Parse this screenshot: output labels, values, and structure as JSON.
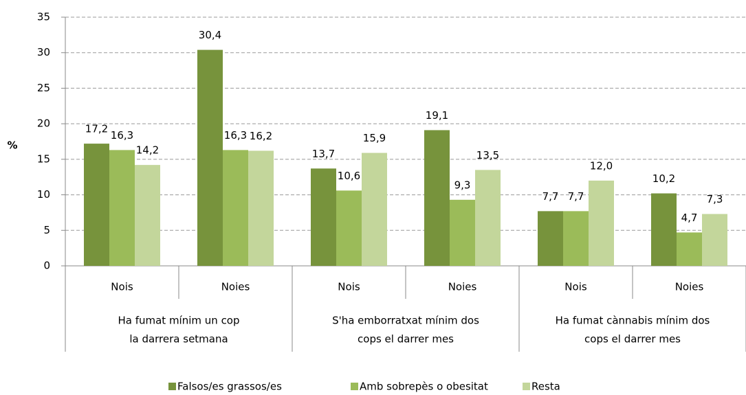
{
  "chart_data": {
    "type": "bar",
    "y_label": "%",
    "categories": [
      "Nois",
      "Noies",
      "Nois",
      "Noies",
      "Nois",
      "Noies"
    ],
    "groups": [
      {
        "label": [
          "Ha fumat mínim un cop",
          "la darrera setmana"
        ]
      },
      {
        "label": [
          "S'ha emborratxat mínim dos",
          "cops el darrer mes"
        ]
      },
      {
        "label": [
          "Ha fumat cànnabis mínim dos",
          "cops el darrer mes"
        ]
      }
    ],
    "series": [
      {
        "name": "Falsos/es grassos/es",
        "color": "#77933c",
        "values": [
          17.2,
          30.4,
          13.7,
          19.1,
          7.7,
          10.2
        ],
        "value_labels": [
          "17,2",
          "30,4",
          "13,7",
          "19,1",
          "7,7",
          "10,2"
        ]
      },
      {
        "name": "Amb sobrepès  o obesitat",
        "color": "#9bbb59",
        "values": [
          16.3,
          16.3,
          10.6,
          9.3,
          7.7,
          4.7
        ],
        "value_labels": [
          "16,3",
          "16,3",
          "10,6",
          "9,3",
          "7,7",
          "4,7"
        ]
      },
      {
        "name": "Resta",
        "color": "#c3d69b",
        "values": [
          14.2,
          16.2,
          15.9,
          13.5,
          12.0,
          7.3
        ],
        "value_labels": [
          "14,2",
          "16,2",
          "15,9",
          "13,5",
          "12,0",
          "7,3"
        ]
      }
    ],
    "ylim": [
      0,
      35
    ],
    "yticks": [
      0,
      5,
      10,
      15,
      20,
      25,
      30,
      35
    ],
    "grid": true,
    "legend": "bottom"
  }
}
